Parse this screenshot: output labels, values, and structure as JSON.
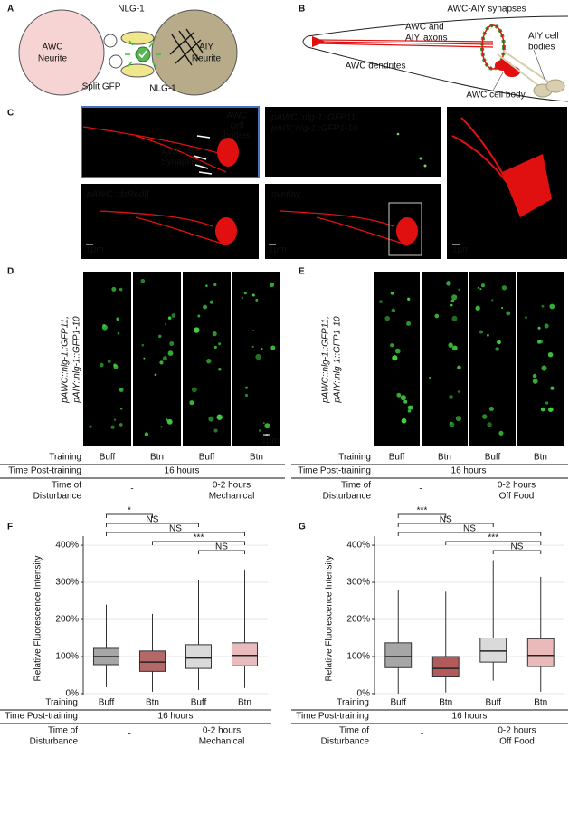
{
  "panel_labels": [
    "A",
    "B",
    "C",
    "D",
    "E",
    "F",
    "G"
  ],
  "panel_a": {
    "awc": [
      "AWC",
      "Neurite"
    ],
    "aiy": [
      "AIY",
      "Neurite"
    ],
    "nlg_top": "NLG-1",
    "nlg_bottom": "NLG-1",
    "split_gfp": "Split GFP"
  },
  "panel_b": {
    "synapses": "AWC-AIY synapses",
    "axons": [
      "AWC",
      "and",
      "AIY",
      "axons"
    ],
    "aiy_bodies": [
      "AIY cell",
      "bodies"
    ],
    "dendrites": "AWC dendrites",
    "cell_body": "AWC cell body"
  },
  "panel_c": {
    "cell_bodies": [
      "AWC",
      "cell",
      "bodies"
    ],
    "synapses": [
      "AWC-AIY",
      "Synapses"
    ],
    "gfp": [
      "pAWC::nlg-1::GFP11,",
      "pAIY::nlg-1::GFP1-10"
    ],
    "dsred": "pAWC::dsRedII",
    "overlay": "overlay",
    "scale": [
      "1μm",
      "1μm",
      "1μm"
    ]
  },
  "panel_d": {
    "reporter": [
      "pAWC::nlg-1::GFP11,",
      "pAIY::nlg-1::GFP1-10"
    ],
    "scale": "1μm",
    "table": {
      "training_label": "Training",
      "training": [
        "Buff",
        "Btn",
        "Buff",
        "Btn"
      ],
      "post_label": "Time Post-training",
      "post_training": "16 hours",
      "disturbance_label": [
        "Time of",
        "Disturbance"
      ],
      "control_disturbance": "-",
      "disturbance": [
        "0-2 hours",
        "Mechanical"
      ]
    }
  },
  "panel_e": {
    "reporter": [
      "pAWC::nlg-1::GFP11,",
      "pAIY::nlg-1::GFP1-10"
    ],
    "table": {
      "training_label": "Training",
      "training": [
        "Buff",
        "Btn",
        "Buff",
        "Btn"
      ],
      "post_label": "Time Post-training",
      "post_training": "16 hours",
      "disturbance_label": [
        "Time of",
        "Disturbance"
      ],
      "control_disturbance": "-",
      "disturbance": [
        "0-2 hours",
        "Off Food"
      ]
    }
  },
  "chart_data": [
    {
      "type": "box",
      "ylabel": "Relative Fluorescence Intensity",
      "categories": [
        "Buff",
        "Btn",
        "Buff",
        "Btn"
      ],
      "colors": [
        "#a6a6a6",
        "#b46868",
        "#dadada",
        "#e8bcbc"
      ],
      "boxes": [
        {
          "q1": 78,
          "median": 100,
          "q3": 122,
          "whisker_low": 17,
          "whisker_high": 240
        },
        {
          "q1": 60,
          "median": 85,
          "q3": 115,
          "whisker_low": 5,
          "whisker_high": 215
        },
        {
          "q1": 68,
          "median": 96,
          "q3": 132,
          "whisker_low": 10,
          "whisker_high": 305
        },
        {
          "q1": 75,
          "median": 103,
          "q3": 137,
          "whisker_low": 15,
          "whisker_high": 335
        }
      ],
      "ylim": [
        -5,
        410
      ],
      "yticks": [
        {
          "value": 0,
          "label": "0%"
        },
        {
          "value": 100,
          "label": "100%"
        },
        {
          "value": 200,
          "label": "200%"
        },
        {
          "value": 300,
          "label": "300%"
        },
        {
          "value": 400,
          "label": "400%"
        }
      ],
      "grid": true,
      "comparisons": [
        {
          "groups": [
            0,
            1
          ],
          "label": "*"
        },
        {
          "groups": [
            0,
            2
          ],
          "label": "NS"
        },
        {
          "groups": [
            0,
            3
          ],
          "label": "NS"
        },
        {
          "groups": [
            1,
            3
          ],
          "label": "***"
        },
        {
          "groups": [
            2,
            3
          ],
          "label": "NS"
        }
      ],
      "table": {
        "training_label": "Training",
        "post_label": "Time Post-training",
        "post_training": "16 hours",
        "disturbance_label": [
          "Time of",
          "Disturbance"
        ],
        "control_disturbance": "-",
        "disturbance": [
          "0-2 hours",
          "Mechanical"
        ]
      }
    },
    {
      "type": "box",
      "ylabel": "Relative Fluorescence Intensity",
      "categories": [
        "Buff",
        "Btn",
        "Buff",
        "Btn"
      ],
      "colors": [
        "#a6a6a6",
        "#b35a5a",
        "#dadada",
        "#eab9b9"
      ],
      "boxes": [
        {
          "q1": 70,
          "median": 100,
          "q3": 137,
          "whisker_low": 0,
          "whisker_high": 280
        },
        {
          "q1": 45,
          "median": 68,
          "q3": 100,
          "whisker_low": 3,
          "whisker_high": 275
        },
        {
          "q1": 85,
          "median": 115,
          "q3": 150,
          "whisker_low": 35,
          "whisker_high": 360
        },
        {
          "q1": 73,
          "median": 103,
          "q3": 148,
          "whisker_low": 5,
          "whisker_high": 315
        }
      ],
      "ylim": [
        -5,
        410
      ],
      "yticks": [
        {
          "value": 0,
          "label": "0%"
        },
        {
          "value": 100,
          "label": "100%"
        },
        {
          "value": 200,
          "label": "200%"
        },
        {
          "value": 300,
          "label": "300%"
        },
        {
          "value": 400,
          "label": "400%"
        }
      ],
      "grid": true,
      "comparisons": [
        {
          "groups": [
            0,
            1
          ],
          "label": "***"
        },
        {
          "groups": [
            0,
            2
          ],
          "label": "NS"
        },
        {
          "groups": [
            0,
            3
          ],
          "label": "NS"
        },
        {
          "groups": [
            1,
            3
          ],
          "label": "***"
        },
        {
          "groups": [
            2,
            3
          ],
          "label": "NS"
        }
      ],
      "table": {
        "training_label": "Training",
        "post_label": "Time Post-training",
        "post_training": "16 hours",
        "disturbance_label": [
          "Time of",
          "Disturbance"
        ],
        "control_disturbance": "-",
        "disturbance": [
          "0-2 hours",
          "Off Food"
        ]
      }
    }
  ]
}
